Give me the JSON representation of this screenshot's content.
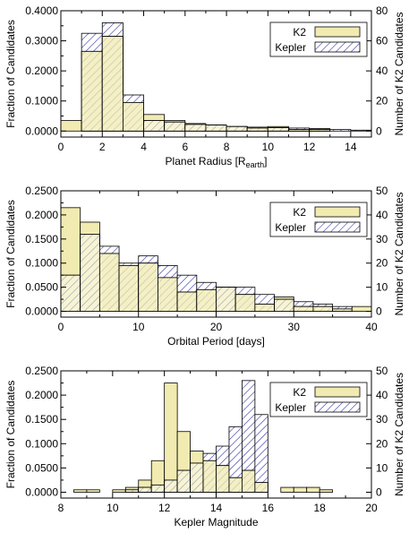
{
  "colors": {
    "k2_fill": "#f1ebb1",
    "kepler_hatch": "#3a3aa8",
    "stroke": "#000000"
  },
  "chart_data": [
    {
      "type": "bar",
      "xlabel": "Planet Radius [R",
      "xlabel_sub": "earth",
      "xlabel_close": "]",
      "ylabel": "Fraction of Candidates",
      "y2label": "Number of K2 Candidates",
      "xlim": [
        0,
        15
      ],
      "ylim": [
        -0.02,
        0.4
      ],
      "y2lim": [
        -4,
        80
      ],
      "xticks": [
        0,
        2,
        4,
        6,
        8,
        10,
        12,
        14
      ],
      "yticks": [
        0.0,
        0.1,
        0.2,
        0.3,
        0.4
      ],
      "ytick_labels": [
        "0.0000",
        "0.1000",
        "0.2000",
        "0.3000",
        "0.4000"
      ],
      "y2ticks": [
        0,
        20,
        40,
        60,
        80
      ],
      "bin_edges": [
        0,
        1,
        2,
        3,
        4,
        5,
        6,
        7,
        8,
        9,
        10,
        11,
        12,
        13,
        14,
        15
      ],
      "series": [
        {
          "name": "K2",
          "values": [
            0.035,
            0.265,
            0.315,
            0.095,
            0.055,
            0.035,
            0.025,
            0.02,
            0.015,
            0.01,
            0.015,
            0.005,
            0.005,
            0.0,
            0.0
          ]
        },
        {
          "name": "Kepler",
          "values": [
            0.0,
            0.325,
            0.36,
            0.12,
            0.035,
            0.03,
            0.022,
            0.02,
            0.015,
            0.013,
            0.011,
            0.01,
            0.008,
            0.005,
            0.003
          ]
        }
      ],
      "legend": {
        "position": "top-right"
      }
    },
    {
      "type": "bar",
      "xlabel": "Orbital Period [days]",
      "ylabel": "Fraction of Candidates",
      "y2label": "Number of K2 Candidates",
      "xlim": [
        0,
        40
      ],
      "ylim": [
        -0.012,
        0.25
      ],
      "y2lim": [
        -2.4,
        50
      ],
      "xticks": [
        0,
        10,
        20,
        30,
        40
      ],
      "yticks": [
        0.0,
        0.05,
        0.1,
        0.15,
        0.2,
        0.25
      ],
      "ytick_labels": [
        "0.0000",
        "0.0500",
        "0.1000",
        "0.1500",
        "0.2000",
        "0.2500"
      ],
      "y2ticks": [
        0,
        10,
        20,
        30,
        40,
        50
      ],
      "bin_edges": [
        0,
        2.5,
        5,
        7.5,
        10,
        12.5,
        15,
        17.5,
        20,
        22.5,
        25,
        27.5,
        30,
        32.5,
        35,
        37.5,
        40
      ],
      "series": [
        {
          "name": "K2",
          "values": [
            0.215,
            0.185,
            0.12,
            0.095,
            0.1,
            0.07,
            0.04,
            0.045,
            0.05,
            0.035,
            0.015,
            0.03,
            0.01,
            0.01,
            0.005,
            0.01
          ]
        },
        {
          "name": "Kepler",
          "values": [
            0.075,
            0.16,
            0.135,
            0.1,
            0.115,
            0.095,
            0.075,
            0.06,
            0.05,
            0.05,
            0.035,
            0.025,
            0.02,
            0.015,
            0.01,
            0.0
          ]
        }
      ],
      "legend": {
        "position": "top-right"
      }
    },
    {
      "type": "bar",
      "xlabel": "Kepler Magnitude",
      "ylabel": "Fraction of Candidates",
      "y2label": "Number of K2 Candidates",
      "xlim": [
        8,
        20
      ],
      "ylim": [
        -0.012,
        0.25
      ],
      "y2lim": [
        -2.4,
        50
      ],
      "xticks": [
        8,
        10,
        12,
        14,
        16,
        18,
        20
      ],
      "yticks": [
        0.0,
        0.05,
        0.1,
        0.15,
        0.2,
        0.25
      ],
      "ytick_labels": [
        "0.0000",
        "0.0500",
        "0.1000",
        "0.1500",
        "0.2000",
        "0.2500"
      ],
      "y2ticks": [
        0,
        10,
        20,
        30,
        40,
        50
      ],
      "bin_edges": [
        8,
        8.5,
        9,
        9.5,
        10,
        10.5,
        11,
        11.5,
        12,
        12.5,
        13,
        13.5,
        14,
        14.5,
        15,
        15.5,
        16,
        16.5,
        17,
        17.5,
        18,
        18.5,
        19,
        19.5,
        20
      ],
      "series": [
        {
          "name": "K2",
          "values": [
            0.0,
            0.005,
            0.005,
            0.0,
            0.005,
            0.01,
            0.025,
            0.065,
            0.225,
            0.125,
            0.085,
            0.065,
            0.055,
            0.03,
            0.045,
            0.02,
            0.0,
            0.01,
            0.01,
            0.01,
            0.005,
            0.0,
            0.0,
            0.0
          ]
        },
        {
          "name": "Kepler",
          "values": [
            0.0,
            0.0,
            0.0,
            0.0,
            0.0,
            0.005,
            0.01,
            0.015,
            0.025,
            0.045,
            0.06,
            0.08,
            0.095,
            0.135,
            0.23,
            0.16,
            0.0,
            0.0,
            0.0,
            0.0,
            0.0,
            0.0,
            0.0,
            0.0
          ]
        }
      ],
      "legend": {
        "position": "top-right"
      }
    }
  ]
}
